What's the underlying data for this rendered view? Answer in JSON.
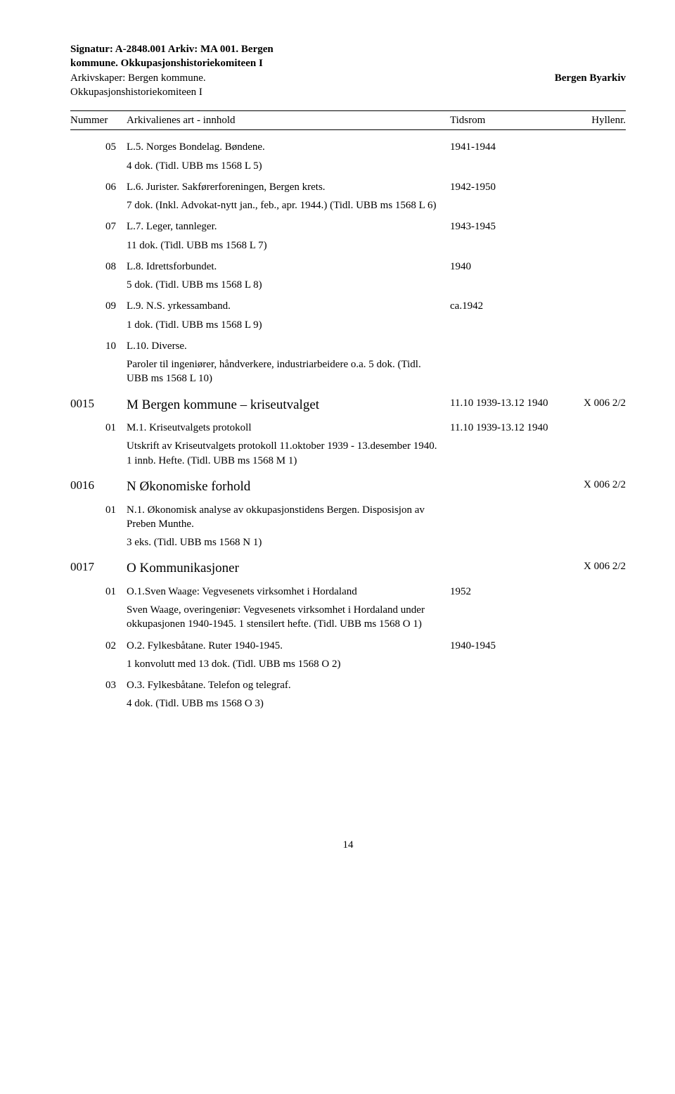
{
  "header": {
    "line1": "Signatur: A-2848.001 Arkiv: MA 001. Bergen",
    "line2": "kommune. Okkupasjonshistoriekomiteen I",
    "line3": "Arkivskaper: Bergen kommune.",
    "line4": "Okkupasjonshistoriekomiteen I",
    "right_org": "Bergen Byarkiv"
  },
  "columns": {
    "nummer": "Nummer",
    "innhold": "Arkivalienes art - innhold",
    "tidsrom": "Tidsrom",
    "hyllenr": "Hyllenr."
  },
  "rows": [
    {
      "type": "lvl2",
      "na": "",
      "nb": "05",
      "desc": "L.5. Norges Bondelag. Bøndene.",
      "tid": "1941-1944",
      "hyl": ""
    },
    {
      "type": "note",
      "desc": "4 dok. (Tidl. UBB ms 1568 L 5)"
    },
    {
      "type": "lvl2",
      "na": "",
      "nb": "06",
      "desc": "L.6. Jurister. Sakførerforeningen, Bergen krets.",
      "tid": "1942-1950",
      "hyl": ""
    },
    {
      "type": "note",
      "desc": "7 dok. (Inkl. Advokat-nytt jan., feb., apr. 1944.) (Tidl. UBB ms 1568 L 6)"
    },
    {
      "type": "lvl2",
      "na": "",
      "nb": "07",
      "desc": "L.7. Leger, tannleger.",
      "tid": "1943-1945",
      "hyl": ""
    },
    {
      "type": "note",
      "desc": "11 dok. (Tidl. UBB ms 1568 L 7)"
    },
    {
      "type": "lvl2",
      "na": "",
      "nb": "08",
      "desc": "L.8. Idrettsforbundet.",
      "tid": "1940",
      "hyl": ""
    },
    {
      "type": "note",
      "desc": "5 dok. (Tidl. UBB ms 1568 L 8)"
    },
    {
      "type": "lvl2",
      "na": "",
      "nb": "09",
      "desc": "L.9. N.S. yrkessamband.",
      "tid": "ca.1942",
      "hyl": ""
    },
    {
      "type": "note",
      "desc": "1 dok. (Tidl. UBB ms 1568 L 9)"
    },
    {
      "type": "lvl2",
      "na": "",
      "nb": "10",
      "desc": "L.10. Diverse.",
      "tid": "",
      "hyl": ""
    },
    {
      "type": "note",
      "desc": "Paroler til ingeniører, håndverkere, industriarbeidere o.a. 5 dok. (Tidl. UBB ms 1568 L 10)"
    },
    {
      "type": "lvl1",
      "na": "0015",
      "nb": "",
      "desc": "M Bergen kommune – kriseutvalget",
      "tid": "11.10 1939-13.12 1940",
      "hyl": "X 006 2/2"
    },
    {
      "type": "lvl2",
      "na": "",
      "nb": "01",
      "desc": "M.1. Kriseutvalgets protokoll",
      "tid": "11.10 1939-13.12 1940",
      "hyl": ""
    },
    {
      "type": "note",
      "desc": "Utskrift av Kriseutvalgets protokoll 11.oktober 1939 - 13.desember 1940. 1 innb. Hefte. (Tidl. UBB ms 1568 M 1)"
    },
    {
      "type": "lvl1",
      "na": "0016",
      "nb": "",
      "desc": "N Økonomiske forhold",
      "tid": "",
      "hyl": "X 006 2/2"
    },
    {
      "type": "lvl2",
      "na": "",
      "nb": "01",
      "desc": "N.1. Økonomisk analyse av okkupasjonstidens Bergen. Disposisjon av Preben Munthe.",
      "tid": "",
      "hyl": ""
    },
    {
      "type": "note",
      "desc": "3 eks. (Tidl. UBB ms 1568 N 1)"
    },
    {
      "type": "lvl1",
      "na": "0017",
      "nb": "",
      "desc": "O Kommunikasjoner",
      "tid": "",
      "hyl": "X 006 2/2"
    },
    {
      "type": "lvl2",
      "na": "",
      "nb": "01",
      "desc": "O.1.Sven Waage: Vegvesenets virksomhet i Hordaland",
      "tid": "1952",
      "hyl": ""
    },
    {
      "type": "note",
      "desc": "Sven Waage, overingeniør: Vegvesenets virksomhet i Hordaland under okkupasjonen 1940-1945. 1 stensilert hefte. (Tidl. UBB ms 1568 O 1)"
    },
    {
      "type": "lvl2",
      "na": "",
      "nb": "02",
      "desc": "O.2. Fylkesbåtane. Ruter 1940-1945.",
      "tid": "1940-1945",
      "hyl": ""
    },
    {
      "type": "note",
      "desc": "1 konvolutt med 13 dok. (Tidl. UBB ms 1568 O 2)"
    },
    {
      "type": "lvl2",
      "na": "",
      "nb": "03",
      "desc": "O.3. Fylkesbåtane. Telefon og telegraf.",
      "tid": "",
      "hyl": ""
    },
    {
      "type": "note",
      "desc": "4 dok. (Tidl. UBB ms 1568 O 3)"
    }
  ],
  "page_number": "14"
}
